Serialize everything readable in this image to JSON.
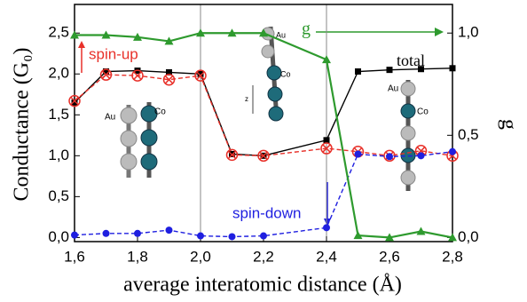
{
  "chart_data": {
    "type": "line",
    "ylabel": "Conductance (G₀)",
    "y2label": "g",
    "xlabel": "average interatomic distance (Å)",
    "x": [
      1.6,
      1.7,
      1.8,
      1.9,
      2.0,
      2.1,
      2.2,
      2.4,
      2.5,
      2.6,
      2.7,
      2.8
    ],
    "series": [
      {
        "name": "total",
        "color": "#000000",
        "marker": "square",
        "dashed": false,
        "values": [
          1.65,
          2.03,
          2.04,
          2.02,
          2.0,
          1.02,
          1.0,
          1.19,
          2.03,
          2.05,
          2.06,
          2.07
        ]
      },
      {
        "name": "spin-up",
        "color": "#e8312a",
        "marker": "circle-x",
        "dashed": true,
        "values": [
          1.67,
          1.99,
          1.98,
          1.93,
          1.98,
          1.01,
          1.0,
          1.09,
          1.05,
          1.0,
          1.06,
          1.0
        ]
      },
      {
        "name": "spin-down",
        "color": "#1f1fe0",
        "marker": "dot",
        "dashed": true,
        "values": [
          0.03,
          0.05,
          0.05,
          0.09,
          0.02,
          0.01,
          0.02,
          0.12,
          1.02,
          0.99,
          1.0,
          1.05
        ]
      },
      {
        "name": "g",
        "color": "#2e9a2e",
        "marker": "triangle",
        "dashed": false,
        "axis": "y2",
        "values": [
          0.99,
          0.99,
          0.98,
          0.96,
          1.0,
          1.0,
          1.0,
          0.87,
          0.01,
          0.0,
          0.03,
          0.0
        ]
      }
    ],
    "xlim": [
      1.6,
      2.8
    ],
    "xticks": [
      {
        "value": 1.6,
        "label": "1,6"
      },
      {
        "value": 1.8,
        "label": "1,8"
      },
      {
        "value": 2.0,
        "label": "2,0"
      },
      {
        "value": 2.2,
        "label": "2,2"
      },
      {
        "value": 2.4,
        "label": "2,4"
      },
      {
        "value": 2.6,
        "label": "2,6"
      },
      {
        "value": 2.8,
        "label": "2,8"
      }
    ],
    "ylim": [
      -0.05,
      2.85
    ],
    "yticks": [
      {
        "value": 0,
        "label": "0,0"
      },
      {
        "value": 0.5,
        "label": "0,5"
      },
      {
        "value": 1.0,
        "label": "1,0"
      },
      {
        "value": 1.5,
        "label": "1,5"
      },
      {
        "value": 2.0,
        "label": "2,0"
      },
      {
        "value": 2.5,
        "label": "2,5"
      }
    ],
    "y2lim": [
      -0.02,
      1.14
    ],
    "y2ticks": [
      {
        "value": 0,
        "label": "0,0"
      },
      {
        "value": 0.5,
        "label": "0,5"
      },
      {
        "value": 1.0,
        "label": "1,0"
      }
    ],
    "vlines": [
      2.0,
      2.4
    ],
    "structure_labels": [
      "Au",
      "Co",
      "z",
      "Au",
      "Co",
      "Au",
      "Co"
    ]
  }
}
